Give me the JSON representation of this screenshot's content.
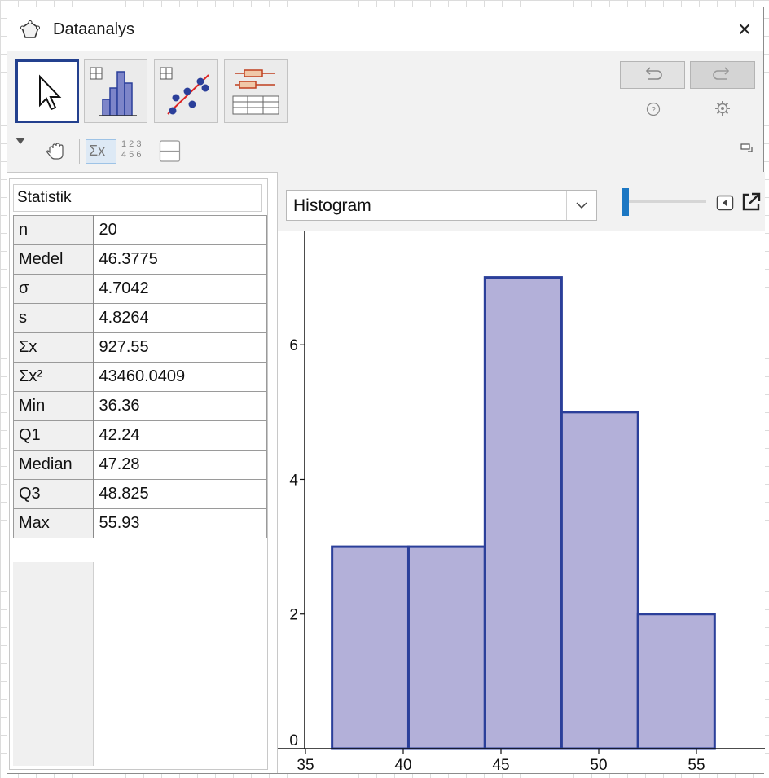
{
  "window": {
    "title": "Dataanalys",
    "close": "×"
  },
  "toolbar": {
    "tools": [
      {
        "name": "move-tool"
      },
      {
        "name": "one-variable-analysis-tool"
      },
      {
        "name": "two-variable-regression-tool"
      },
      {
        "name": "multi-variable-analysis-tool"
      }
    ]
  },
  "subtoolbar": {
    "sum_label": "Σx",
    "grid_label_top": "1 2 3",
    "grid_label_bottom": "4 5 6"
  },
  "statistics": {
    "title": "Statistik",
    "rows": [
      {
        "label": "n",
        "value": "20"
      },
      {
        "label": "Medel",
        "value": "46.3775"
      },
      {
        "label": "σ",
        "value": "4.7042"
      },
      {
        "label": "s",
        "value": "4.8264"
      },
      {
        "label": "Σx",
        "value": "927.55"
      },
      {
        "label": "Σx²",
        "value": "43460.0409"
      },
      {
        "label": "Min",
        "value": "36.36"
      },
      {
        "label": "Q1",
        "value": "42.24"
      },
      {
        "label": "Median",
        "value": "47.28"
      },
      {
        "label": "Q3",
        "value": "48.825"
      },
      {
        "label": "Max",
        "value": "55.93"
      }
    ]
  },
  "plot_header": {
    "chart_type": "Histogram",
    "slider_value": 0
  },
  "colors": {
    "bar_fill": "#b3b0d9",
    "bar_stroke": "#2b3f9a",
    "accent": "#1c77c3",
    "active_border": "#23408e"
  },
  "chart_data": {
    "type": "bar",
    "bins": [
      {
        "from": 36.36,
        "to": 40.27,
        "count": 3
      },
      {
        "from": 40.27,
        "to": 44.18,
        "count": 3
      },
      {
        "from": 44.18,
        "to": 48.1,
        "count": 7
      },
      {
        "from": 48.1,
        "to": 52.01,
        "count": 5
      },
      {
        "from": 52.01,
        "to": 55.93,
        "count": 2
      }
    ],
    "xlim": [
      33.5,
      58.5
    ],
    "ylim": [
      0,
      7.6
    ],
    "x_ticks": [
      35,
      40,
      45,
      50,
      55
    ],
    "y_ticks": [
      0,
      2,
      4,
      6
    ],
    "grid": false
  }
}
